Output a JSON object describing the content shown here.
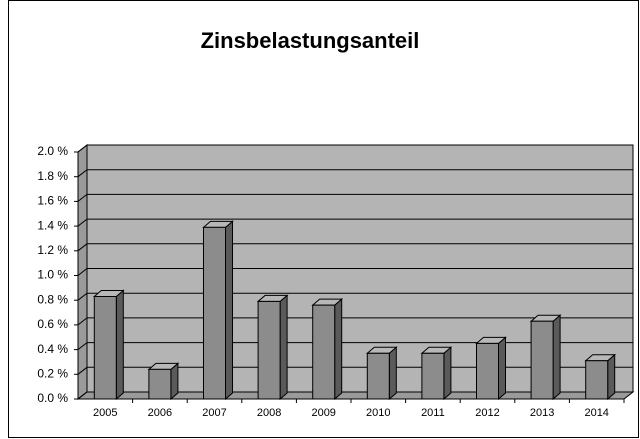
{
  "chart_data": {
    "type": "bar3d",
    "title": "Zinsbelastungsanteil",
    "categories": [
      "2005",
      "2006",
      "2007",
      "2008",
      "2009",
      "2010",
      "2011",
      "2012",
      "2013",
      "2014"
    ],
    "values": [
      0.83,
      0.24,
      1.39,
      0.79,
      0.76,
      0.37,
      0.37,
      0.45,
      0.63,
      0.31
    ],
    "color": "#8c8c8c",
    "ylim": [
      0,
      2.0
    ],
    "yticks": [
      {
        "value": 0,
        "label": "0.0 %"
      },
      {
        "value": 0.2,
        "label": "0.2 %"
      },
      {
        "value": 0.4,
        "label": "0.4 %"
      },
      {
        "value": 0.6,
        "label": "0.6 %"
      },
      {
        "value": 0.8,
        "label": "0.8 %"
      },
      {
        "value": 1.0,
        "label": "1.0 %"
      },
      {
        "value": 1.2,
        "label": "1.2 %"
      },
      {
        "value": 1.4,
        "label": "1.4 %"
      },
      {
        "value": 1.6,
        "label": "1.6 %"
      },
      {
        "value": 1.8,
        "label": "1.8 %"
      },
      {
        "value": 2.0,
        "label": "2.0 %"
      }
    ],
    "grid": true
  }
}
